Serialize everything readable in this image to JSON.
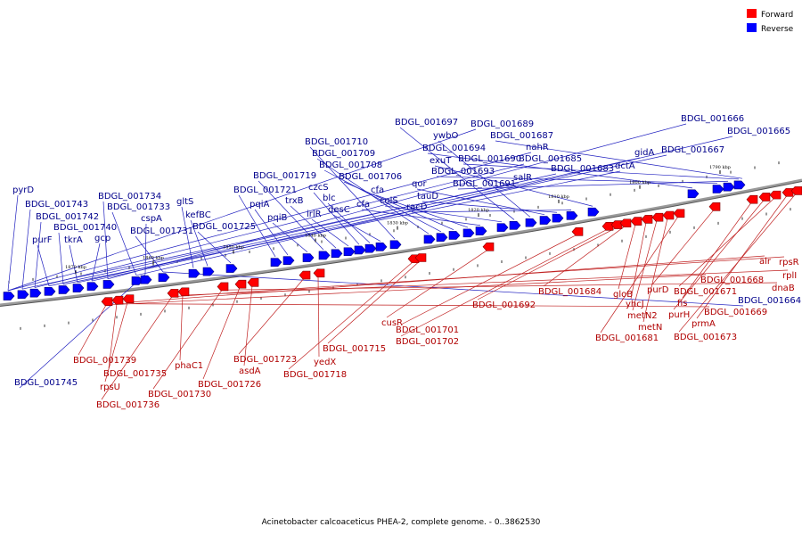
{
  "caption": "Acinetobacter calcoaceticus PHEA-2, complete genome. - 0..3862530",
  "legend": [
    {
      "label": "Forward",
      "color": "#ff0000"
    },
    {
      "label": "Reverse",
      "color": "#0000ff"
    }
  ],
  "colors": {
    "forward": "#ff0000",
    "reverse": "#0000ff",
    "forward_label": "#b00000",
    "reverse_label": "#00008b"
  },
  "kbp_marks": [
    "1870 kbp",
    "1860 kbp",
    "1850 kbp",
    "1840 kbp",
    "1830 kbp",
    "1820 kbp",
    "1810 kbp",
    "1800 kbp",
    "1790 kbp"
  ],
  "reverse_genes": [
    "pyrD",
    "BDGL_001743",
    "BDGL_001742",
    "purF",
    "BDGL_001740",
    "tkrA",
    "gcp",
    "BDGL_001734",
    "BDGL_001733",
    "cspA",
    "BDGL_001731",
    "gltS",
    "kefBC",
    "BDGL_001725",
    "BDGL_001721",
    "pqiA",
    "pqiB",
    "BDGL_001719",
    "trxB",
    "irlR",
    "czcS",
    "blc",
    "desC",
    "BDGL_001710",
    "BDGL_001709",
    "BDGL_001708",
    "BDGL_001706",
    "cfa",
    "cfa",
    "colS",
    "BDGL_001697",
    "ywbO",
    "qor",
    "tauD",
    "racD",
    "exuT",
    "BDGL_001694",
    "BDGL_001693",
    "BDGL_001691",
    "BDGL_001690",
    "BDGL_001689",
    "BDGL_001687",
    "nahR",
    "salR",
    "BDGL_001685",
    "BDGL_001683",
    "dctA",
    "gidA",
    "BDGL_001667",
    "BDGL_001666",
    "BDGL_001665",
    "BDGL_001745",
    "BDGL_001664"
  ],
  "forward_genes": [
    "BDGL_001739",
    "BDGL_001735",
    "rpsU",
    "BDGL_001736",
    "phaC1",
    "BDGL_001730",
    "BDGL_001726",
    "asdA",
    "BDGL_001723",
    "yedX",
    "BDGL_001718",
    "BDGL_001715",
    "cusR",
    "BDGL_001701",
    "BDGL_001702",
    "BDGL_001692",
    "BDGL_001684",
    "gloB",
    "yhcJ",
    "metN2",
    "metN",
    "BDGL_001681",
    "purD",
    "fis",
    "purH",
    "BDGL_001671",
    "prmA",
    "BDGL_001673",
    "BDGL_001668",
    "BDGL_001669",
    "alr",
    "rpsR",
    "rplI",
    "dnaB"
  ]
}
